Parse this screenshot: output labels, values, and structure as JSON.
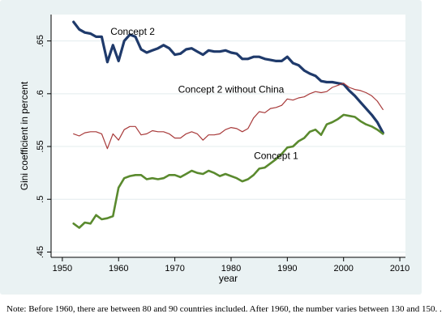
{
  "chart_data": {
    "type": "line",
    "xlabel": "year",
    "ylabel": "Gini coefficient in percent",
    "xlim": [
      1948,
      2011
    ],
    "ylim": [
      0.445,
      0.675
    ],
    "x_ticks": [
      1950,
      1960,
      1970,
      1980,
      1990,
      2000,
      2010
    ],
    "y_ticks": [
      ".45",
      ".5",
      ".55",
      ".6",
      ".65"
    ],
    "grid": true,
    "legend": "none",
    "series": [
      {
        "name": "Concept 2",
        "color": "#1f3a6b",
        "label_at": [
          1962.5,
          0.656
        ],
        "x": [
          1952,
          1953,
          1954,
          1955,
          1956,
          1957,
          1958,
          1959,
          1960,
          1961,
          1962,
          1963,
          1964,
          1965,
          1966,
          1967,
          1968,
          1969,
          1970,
          1971,
          1972,
          1973,
          1974,
          1975,
          1976,
          1977,
          1978,
          1979,
          1980,
          1981,
          1982,
          1983,
          1984,
          1985,
          1986,
          1987,
          1988,
          1989,
          1990,
          1991,
          1992,
          1993,
          1994,
          1995,
          1996,
          1997,
          1998,
          1999,
          2000,
          2001,
          2002,
          2003,
          2004,
          2005,
          2006,
          2007
        ],
        "values": [
          0.668,
          0.661,
          0.658,
          0.657,
          0.654,
          0.654,
          0.63,
          0.646,
          0.631,
          0.65,
          0.656,
          0.654,
          0.642,
          0.639,
          0.641,
          0.643,
          0.646,
          0.643,
          0.637,
          0.638,
          0.642,
          0.643,
          0.64,
          0.637,
          0.641,
          0.64,
          0.64,
          0.641,
          0.639,
          0.638,
          0.633,
          0.633,
          0.635,
          0.635,
          0.633,
          0.632,
          0.631,
          0.631,
          0.635,
          0.629,
          0.627,
          0.622,
          0.619,
          0.617,
          0.612,
          0.611,
          0.611,
          0.61,
          0.609,
          0.603,
          0.598,
          0.592,
          0.586,
          0.58,
          0.573,
          0.563
        ]
      },
      {
        "name": "Concept 2 without China",
        "color": "#a83a3a",
        "label_at": [
          1980,
          0.601
        ],
        "x": [
          1952,
          1953,
          1954,
          1955,
          1956,
          1957,
          1958,
          1959,
          1960,
          1961,
          1962,
          1963,
          1964,
          1965,
          1966,
          1967,
          1968,
          1969,
          1970,
          1971,
          1972,
          1973,
          1974,
          1975,
          1976,
          1977,
          1978,
          1979,
          1980,
          1981,
          1982,
          1983,
          1984,
          1985,
          1986,
          1987,
          1988,
          1989,
          1990,
          1991,
          1992,
          1993,
          1994,
          1995,
          1996,
          1997,
          1998,
          1999,
          2000,
          2001,
          2002,
          2003,
          2004,
          2005,
          2006,
          2007
        ],
        "values": [
          0.562,
          0.56,
          0.563,
          0.564,
          0.564,
          0.562,
          0.548,
          0.562,
          0.556,
          0.566,
          0.569,
          0.569,
          0.561,
          0.562,
          0.565,
          0.564,
          0.564,
          0.562,
          0.558,
          0.558,
          0.562,
          0.564,
          0.562,
          0.556,
          0.561,
          0.561,
          0.562,
          0.566,
          0.568,
          0.567,
          0.564,
          0.567,
          0.577,
          0.583,
          0.582,
          0.586,
          0.587,
          0.589,
          0.595,
          0.594,
          0.596,
          0.597,
          0.6,
          0.602,
          0.601,
          0.602,
          0.606,
          0.608,
          0.61,
          0.606,
          0.604,
          0.603,
          0.601,
          0.598,
          0.593,
          0.585
        ]
      },
      {
        "name": "Concept 1",
        "color": "#5a8a2e",
        "label_at": [
          1988,
          0.538
        ],
        "x": [
          1952,
          1953,
          1954,
          1955,
          1956,
          1957,
          1958,
          1959,
          1960,
          1961,
          1962,
          1963,
          1964,
          1965,
          1966,
          1967,
          1968,
          1969,
          1970,
          1971,
          1972,
          1973,
          1974,
          1975,
          1976,
          1977,
          1978,
          1979,
          1980,
          1981,
          1982,
          1983,
          1984,
          1985,
          1986,
          1987,
          1988,
          1989,
          1990,
          1991,
          1992,
          1993,
          1994,
          1995,
          1996,
          1997,
          1998,
          1999,
          2000,
          2001,
          2002,
          2003,
          2004,
          2005,
          2006,
          2007
        ],
        "values": [
          0.477,
          0.473,
          0.478,
          0.477,
          0.485,
          0.481,
          0.482,
          0.484,
          0.511,
          0.52,
          0.522,
          0.523,
          0.523,
          0.519,
          0.52,
          0.519,
          0.52,
          0.523,
          0.523,
          0.521,
          0.524,
          0.527,
          0.525,
          0.524,
          0.527,
          0.525,
          0.522,
          0.524,
          0.522,
          0.52,
          0.517,
          0.519,
          0.523,
          0.529,
          0.53,
          0.534,
          0.538,
          0.543,
          0.549,
          0.55,
          0.555,
          0.558,
          0.564,
          0.566,
          0.561,
          0.571,
          0.573,
          0.576,
          0.58,
          0.579,
          0.578,
          0.574,
          0.571,
          0.569,
          0.566,
          0.562
        ]
      }
    ]
  },
  "note": "Note: Before 1960, there are between 80 and 90 countries included. After 1960, the number varies between 130 and 150. ."
}
